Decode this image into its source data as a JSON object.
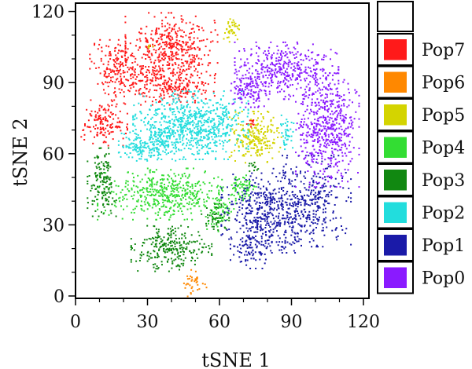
{
  "chart_data": {
    "type": "scatter",
    "title": "",
    "xlabel": "tSNE 1",
    "ylabel": "tSNE 2",
    "xlim": [
      0,
      122
    ],
    "ylim": [
      0,
      122
    ],
    "xticks": [
      0,
      30,
      60,
      90,
      120
    ],
    "yticks": [
      0,
      30,
      60,
      90,
      120
    ],
    "xtick_labels": [
      "0",
      "30",
      "60",
      "90",
      "120"
    ],
    "ytick_labels": [
      "0",
      "30",
      "60",
      "90",
      "120"
    ],
    "grid": false,
    "legend_position": "right",
    "series": [
      {
        "name": "Pop7",
        "color": "#ff1a1a",
        "regions": [
          {
            "cx": 40,
            "cy": 105,
            "rx": 16,
            "ry": 12,
            "n": 420
          },
          {
            "cx": 18,
            "cy": 96,
            "rx": 10,
            "ry": 10,
            "n": 200
          },
          {
            "cx": 40,
            "cy": 89,
            "rx": 15,
            "ry": 7,
            "n": 260
          },
          {
            "cx": 12,
            "cy": 73,
            "rx": 8,
            "ry": 8,
            "n": 150
          },
          {
            "cx": 73,
            "cy": 73,
            "rx": 2,
            "ry": 2,
            "n": 14
          }
        ]
      },
      {
        "name": "Pop6",
        "color": "#ff8800",
        "regions": [
          {
            "cx": 50,
            "cy": 5,
            "rx": 4,
            "ry": 5,
            "n": 40
          }
        ]
      },
      {
        "name": "Pop5",
        "color": "#d4d400",
        "regions": [
          {
            "cx": 75,
            "cy": 67,
            "rx": 9,
            "ry": 9,
            "n": 220
          },
          {
            "cx": 65,
            "cy": 112,
            "rx": 3,
            "ry": 4,
            "n": 40
          },
          {
            "cx": 31,
            "cy": 105,
            "rx": 1.5,
            "ry": 1.5,
            "n": 5
          }
        ]
      },
      {
        "name": "Pop4",
        "color": "#33dd33",
        "regions": [
          {
            "cx": 38,
            "cy": 43,
            "rx": 24,
            "ry": 9,
            "n": 480
          },
          {
            "cx": 70,
            "cy": 45,
            "rx": 5,
            "ry": 5,
            "n": 70
          },
          {
            "cx": 60,
            "cy": 35,
            "rx": 5,
            "ry": 7,
            "n": 60
          }
        ]
      },
      {
        "name": "Pop3",
        "color": "#118811",
        "regions": [
          {
            "cx": 11,
            "cy": 48,
            "rx": 5,
            "ry": 12,
            "n": 150
          },
          {
            "cx": 40,
            "cy": 20,
            "rx": 14,
            "ry": 8,
            "n": 260
          },
          {
            "cx": 58,
            "cy": 33,
            "rx": 5,
            "ry": 5,
            "n": 50
          },
          {
            "cx": 74,
            "cy": 55,
            "rx": 2,
            "ry": 2,
            "n": 12
          }
        ]
      },
      {
        "name": "Pop2",
        "color": "#22dddd",
        "regions": [
          {
            "cx": 48,
            "cy": 72,
            "rx": 20,
            "ry": 12,
            "n": 760
          },
          {
            "cx": 30,
            "cy": 63,
            "rx": 10,
            "ry": 5,
            "n": 160
          },
          {
            "cx": 88,
            "cy": 69,
            "rx": 3,
            "ry": 6,
            "n": 40
          }
        ]
      },
      {
        "name": "Pop1",
        "color": "#1a1aa8",
        "regions": [
          {
            "cx": 80,
            "cy": 35,
            "rx": 16,
            "ry": 14,
            "n": 460
          },
          {
            "cx": 98,
            "cy": 40,
            "rx": 14,
            "ry": 16,
            "n": 320
          },
          {
            "cx": 73,
            "cy": 20,
            "rx": 7,
            "ry": 7,
            "n": 80
          }
        ]
      },
      {
        "name": "Pop0",
        "color": "#8a1aff",
        "regions": [
          {
            "cx": 88,
            "cy": 95,
            "rx": 18,
            "ry": 10,
            "n": 400
          },
          {
            "cx": 105,
            "cy": 70,
            "rx": 11,
            "ry": 20,
            "n": 540
          },
          {
            "cx": 72,
            "cy": 88,
            "rx": 6,
            "ry": 7,
            "n": 120
          }
        ]
      }
    ],
    "legend": {
      "order": [
        "Pop7",
        "Pop6",
        "Pop5",
        "Pop4",
        "Pop3",
        "Pop2",
        "Pop1",
        "Pop0"
      ],
      "header": ""
    }
  }
}
